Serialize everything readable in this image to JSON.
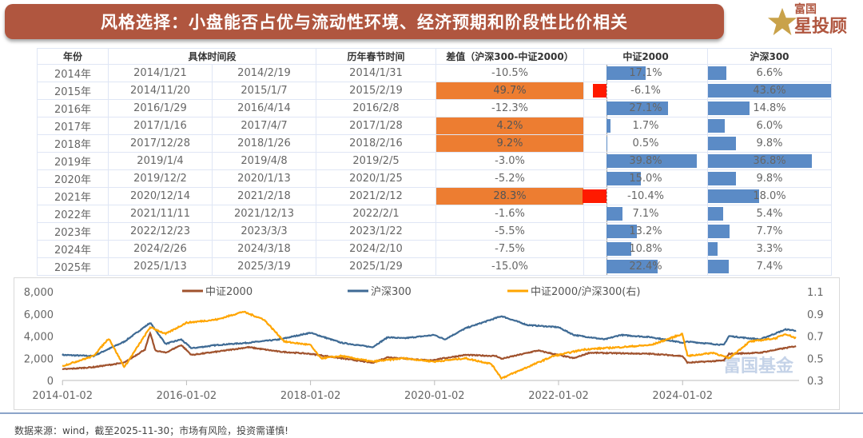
{
  "title": "风格选择：小盘能否占优与流动性环境、经济预期和阶段性比价相关",
  "logo": {
    "line1": "富国",
    "line2": "星投顾"
  },
  "watermark": "富国基金",
  "table": {
    "headers": [
      "年份",
      "具体时间段",
      "历年春节时间",
      "差值（沪深300-中证2000）",
      "中证2000",
      "沪深300"
    ],
    "rows": [
      {
        "year": "2014年",
        "start": "2014/1/21",
        "end": "2014/2/19",
        "spring": "2014/1/31",
        "diff": "-10.5%",
        "csi2000": "17.1%",
        "hs300": "6.6%",
        "diff_v": -10.5,
        "c_v": 17.1,
        "h_v": 6.6
      },
      {
        "year": "2015年",
        "start": "2014/11/20",
        "end": "2015/1/7",
        "spring": "2015/2/19",
        "diff": "49.7%",
        "csi2000": "-6.1%",
        "hs300": "43.6%",
        "diff_v": 49.7,
        "c_v": -6.1,
        "h_v": 43.6
      },
      {
        "year": "2016年",
        "start": "2016/1/29",
        "end": "2016/4/14",
        "spring": "2016/2/8",
        "diff": "-12.3%",
        "csi2000": "27.1%",
        "hs300": "14.8%",
        "diff_v": -12.3,
        "c_v": 27.1,
        "h_v": 14.8
      },
      {
        "year": "2017年",
        "start": "2017/1/16",
        "end": "2017/4/7",
        "spring": "2017/1/28",
        "diff": "4.2%",
        "csi2000": "1.7%",
        "hs300": "6.0%",
        "diff_v": 4.2,
        "c_v": 1.7,
        "h_v": 6.0
      },
      {
        "year": "2018年",
        "start": "2017/12/28",
        "end": "2018/1/26",
        "spring": "2018/2/16",
        "diff": "9.2%",
        "csi2000": "0.5%",
        "hs300": "9.8%",
        "diff_v": 9.2,
        "c_v": 0.5,
        "h_v": 9.8
      },
      {
        "year": "2019年",
        "start": "2019/1/4",
        "end": "2019/4/8",
        "spring": "2019/2/5",
        "diff": "-3.0%",
        "csi2000": "39.8%",
        "hs300": "36.8%",
        "diff_v": -3.0,
        "c_v": 39.8,
        "h_v": 36.8
      },
      {
        "year": "2020年",
        "start": "2019/12/2",
        "end": "2020/1/13",
        "spring": "2020/1/25",
        "diff": "-5.2%",
        "csi2000": "15.0%",
        "hs300": "9.8%",
        "diff_v": -5.2,
        "c_v": 15.0,
        "h_v": 9.8
      },
      {
        "year": "2021年",
        "start": "2020/12/14",
        "end": "2021/2/18",
        "spring": "2021/2/12",
        "diff": "28.3%",
        "csi2000": "-10.4%",
        "hs300": "18.0%",
        "diff_v": 28.3,
        "c_v": -10.4,
        "h_v": 18.0
      },
      {
        "year": "2022年",
        "start": "2021/11/11",
        "end": "2021/12/13",
        "spring": "2022/2/1",
        "diff": "-1.6%",
        "csi2000": "7.1%",
        "hs300": "5.4%",
        "diff_v": -1.6,
        "c_v": 7.1,
        "h_v": 5.4
      },
      {
        "year": "2023年",
        "start": "2022/12/23",
        "end": "2023/3/3",
        "spring": "2023/1/22",
        "diff": "-5.5%",
        "csi2000": "13.2%",
        "hs300": "7.7%",
        "diff_v": -5.5,
        "c_v": 13.2,
        "h_v": 7.7
      },
      {
        "year": "2024年",
        "start": "2024/2/26",
        "end": "2024/3/18",
        "spring": "2024/2/10",
        "diff": "-7.5%",
        "csi2000": "10.8%",
        "hs300": "3.3%",
        "diff_v": -7.5,
        "c_v": 10.8,
        "h_v": 3.3
      },
      {
        "year": "2025年",
        "start": "2025/1/13",
        "end": "2025/3/19",
        "spring": "2025/1/29",
        "diff": "-15.0%",
        "csi2000": "22.4%",
        "hs300": "7.4%",
        "diff_v": -15.0,
        "c_v": 22.4,
        "h_v": 7.4
      }
    ],
    "colors": {
      "positive_diff": "#ed7d31",
      "bar": "#5b8bc6",
      "negative_bar": "#ff1a00"
    }
  },
  "chart_data": {
    "type": "line",
    "xlabel": "",
    "ylabel": "",
    "x_ticks": [
      "2014-01-02",
      "2016-01-02",
      "2018-01-02",
      "2020-01-02",
      "2022-01-02",
      "2024-01-02"
    ],
    "y_left": {
      "ticks": [
        "0",
        "2,000",
        "4,000",
        "6,000",
        "8,000"
      ],
      "range": [
        0,
        8000
      ]
    },
    "y_right": {
      "ticks": [
        "0.3",
        "0.5",
        "0.7",
        "0.9",
        "1.1"
      ],
      "range": [
        0.3,
        1.1
      ]
    },
    "legend_position": "top",
    "series": [
      {
        "name": "中证2000",
        "axis": "left",
        "color": "#a0522d",
        "points": [
          [
            "2014-01",
            1000
          ],
          [
            "2014-07",
            1200
          ],
          [
            "2015-01",
            1600
          ],
          [
            "2015-05",
            2800
          ],
          [
            "2015-06",
            4300
          ],
          [
            "2015-07",
            2700
          ],
          [
            "2015-09",
            2500
          ],
          [
            "2015-12",
            3200
          ],
          [
            "2016-02",
            2300
          ],
          [
            "2016-07",
            2600
          ],
          [
            "2017-01",
            3000
          ],
          [
            "2017-07",
            2600
          ],
          [
            "2018-01",
            2400
          ],
          [
            "2018-07",
            2000
          ],
          [
            "2019-01",
            1600
          ],
          [
            "2019-04",
            2100
          ],
          [
            "2019-12",
            1800
          ],
          [
            "2020-07",
            2300
          ],
          [
            "2021-01",
            2200
          ],
          [
            "2021-02",
            1950
          ],
          [
            "2021-09",
            2700
          ],
          [
            "2022-04",
            2000
          ],
          [
            "2022-07",
            2500
          ],
          [
            "2023-07",
            2400
          ],
          [
            "2024-01",
            2200
          ],
          [
            "2024-02",
            1600
          ],
          [
            "2024-09",
            1800
          ],
          [
            "2024-10",
            2400
          ],
          [
            "2025-04",
            2500
          ],
          [
            "2025-11",
            3100
          ]
        ]
      },
      {
        "name": "沪深300",
        "axis": "left",
        "color": "#3e6a94",
        "points": [
          [
            "2014-01",
            2300
          ],
          [
            "2014-07",
            2200
          ],
          [
            "2015-01",
            3500
          ],
          [
            "2015-06",
            5200
          ],
          [
            "2015-09",
            3300
          ],
          [
            "2015-12",
            3700
          ],
          [
            "2016-02",
            2900
          ],
          [
            "2016-07",
            3200
          ],
          [
            "2017-01",
            3400
          ],
          [
            "2017-07",
            3700
          ],
          [
            "2018-01",
            4300
          ],
          [
            "2018-07",
            3400
          ],
          [
            "2019-01",
            3000
          ],
          [
            "2019-04",
            3900
          ],
          [
            "2019-07",
            3800
          ],
          [
            "2020-01",
            4100
          ],
          [
            "2020-03",
            3700
          ],
          [
            "2020-07",
            4700
          ],
          [
            "2021-02",
            5800
          ],
          [
            "2021-07",
            5000
          ],
          [
            "2022-01",
            4800
          ],
          [
            "2022-04",
            4100
          ],
          [
            "2022-10",
            3700
          ],
          [
            "2023-01",
            4100
          ],
          [
            "2023-07",
            3900
          ],
          [
            "2024-01",
            3400
          ],
          [
            "2024-02",
            3500
          ],
          [
            "2024-09",
            3200
          ],
          [
            "2024-10",
            4000
          ],
          [
            "2025-04",
            3700
          ],
          [
            "2025-09",
            4600
          ],
          [
            "2025-11",
            4500
          ]
        ]
      },
      {
        "name": "中证2000/沪深300(右)",
        "axis": "right",
        "color": "#ffa500",
        "points": [
          [
            "2014-01",
            0.43
          ],
          [
            "2014-07",
            0.52
          ],
          [
            "2014-10",
            0.68
          ],
          [
            "2015-01",
            0.42
          ],
          [
            "2015-06",
            0.78
          ],
          [
            "2015-09",
            0.72
          ],
          [
            "2016-01",
            0.82
          ],
          [
            "2016-07",
            0.85
          ],
          [
            "2016-12",
            0.92
          ],
          [
            "2017-04",
            0.85
          ],
          [
            "2017-08",
            0.65
          ],
          [
            "2018-01",
            0.62
          ],
          [
            "2018-03",
            0.5
          ],
          [
            "2018-07",
            0.52
          ],
          [
            "2019-01",
            0.47
          ],
          [
            "2019-07",
            0.5
          ],
          [
            "2020-01",
            0.47
          ],
          [
            "2020-07",
            0.5
          ],
          [
            "2020-12",
            0.45
          ],
          [
            "2021-02",
            0.32
          ],
          [
            "2021-06",
            0.4
          ],
          [
            "2021-12",
            0.52
          ],
          [
            "2022-06",
            0.58
          ],
          [
            "2023-01",
            0.6
          ],
          [
            "2023-07",
            0.62
          ],
          [
            "2024-01",
            0.72
          ],
          [
            "2024-02",
            0.52
          ],
          [
            "2024-07",
            0.55
          ],
          [
            "2024-10",
            0.5
          ],
          [
            "2025-02",
            0.65
          ],
          [
            "2025-07",
            0.68
          ],
          [
            "2025-09",
            0.72
          ],
          [
            "2025-11",
            0.68
          ]
        ]
      }
    ]
  },
  "footer": "数据来源：wind，截至2025-11-30；市场有风险，投资需谨慎!"
}
